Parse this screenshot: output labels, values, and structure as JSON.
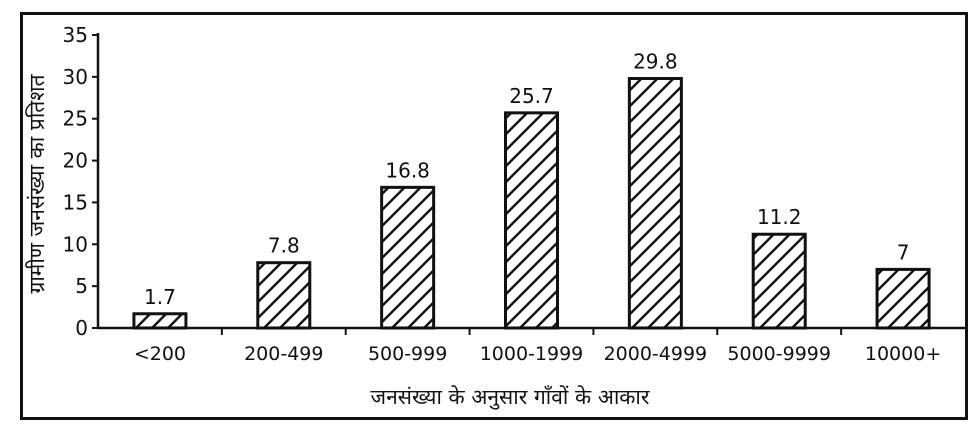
{
  "chart_data": {
    "type": "bar",
    "categories": [
      "<200",
      "200-499",
      "500-999",
      "1000-1999",
      "2000-4999",
      "5000-9999",
      "10000+"
    ],
    "values": [
      1.7,
      7.8,
      16.8,
      25.7,
      29.8,
      11.2,
      7
    ],
    "value_labels": [
      "1.7",
      "7.8",
      "16.8",
      "25.7",
      "29.8",
      "11.2",
      "7"
    ],
    "xlabel": "जनसंख्या के अनुसार गाँवों के आकार",
    "ylabel": "ग्रामीण जनसंख्या का प्रतिशत",
    "ylim": [
      0,
      35
    ],
    "yticks": [
      0,
      5,
      10,
      15,
      20,
      25,
      30,
      35
    ],
    "bar_fill": "hatched",
    "grid": false
  }
}
